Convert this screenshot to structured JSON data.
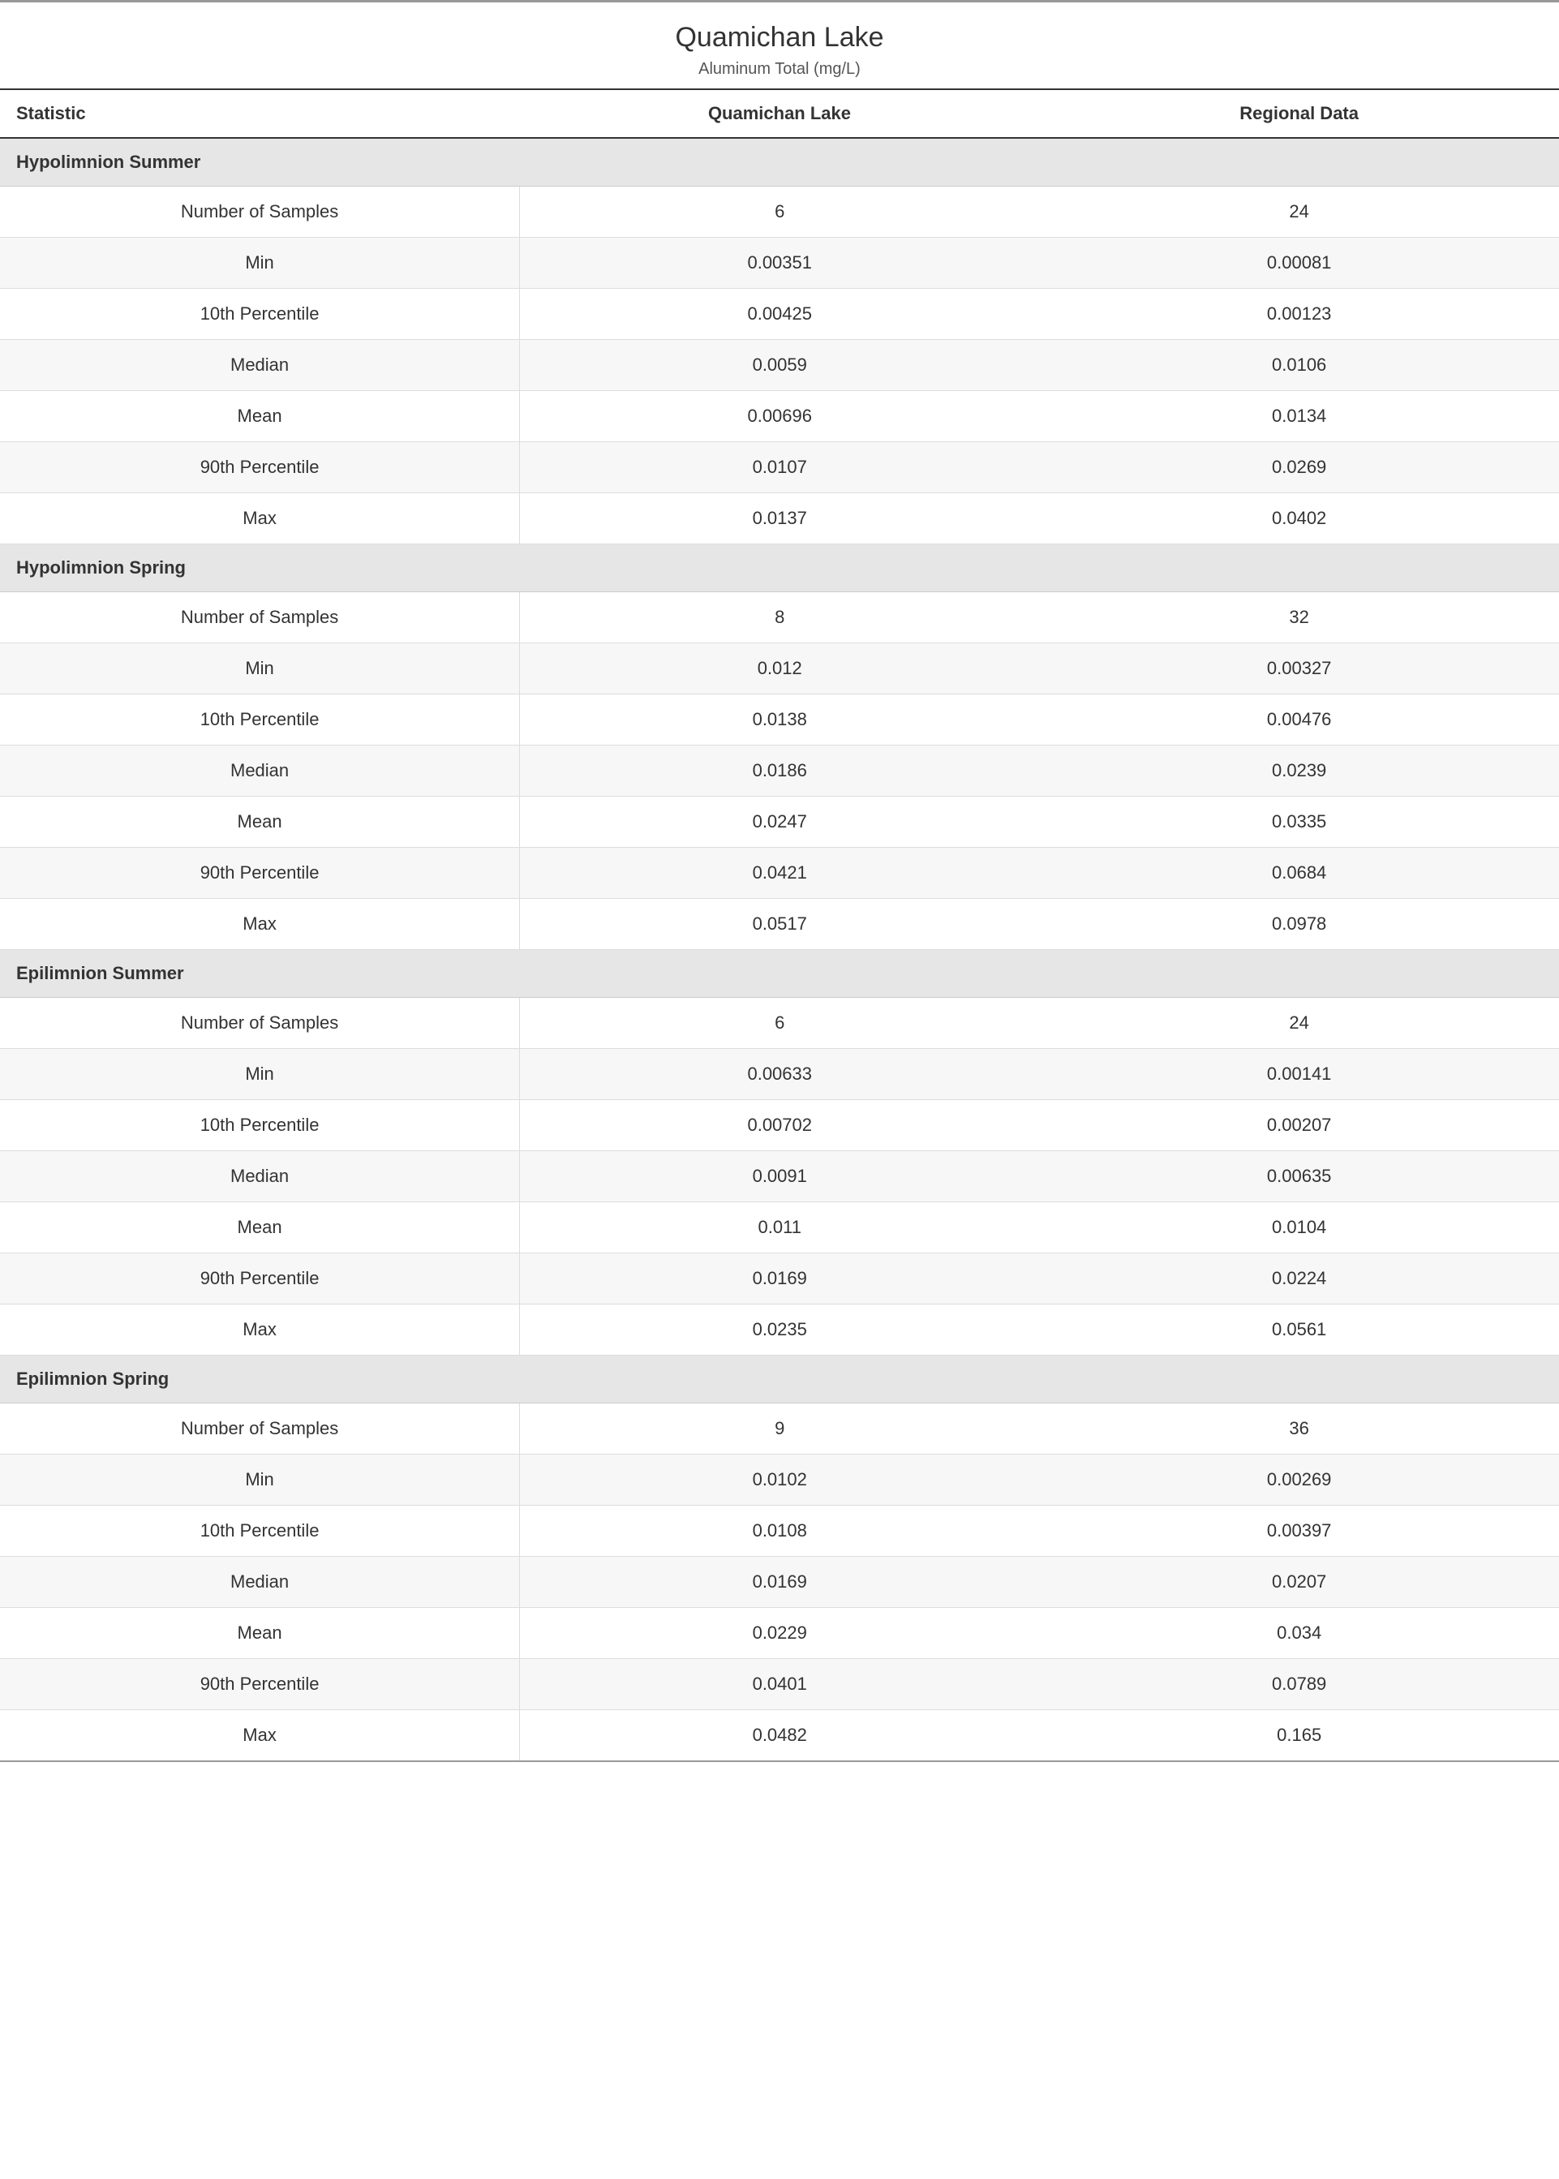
{
  "title": "Quamichan Lake",
  "subtitle": "Aluminum Total (mg/L)",
  "columns": [
    "Statistic",
    "Quamichan Lake",
    "Regional Data"
  ],
  "stat_labels": [
    "Number of Samples",
    "Min",
    "10th Percentile",
    "Median",
    "Mean",
    "90th Percentile",
    "Max"
  ],
  "sections": [
    {
      "name": "Hypolimnion Summer",
      "rows": [
        [
          "6",
          "24"
        ],
        [
          "0.00351",
          "0.00081"
        ],
        [
          "0.00425",
          "0.00123"
        ],
        [
          "0.0059",
          "0.0106"
        ],
        [
          "0.00696",
          "0.0134"
        ],
        [
          "0.0107",
          "0.0269"
        ],
        [
          "0.0137",
          "0.0402"
        ]
      ]
    },
    {
      "name": "Hypolimnion Spring",
      "rows": [
        [
          "8",
          "32"
        ],
        [
          "0.012",
          "0.00327"
        ],
        [
          "0.0138",
          "0.00476"
        ],
        [
          "0.0186",
          "0.0239"
        ],
        [
          "0.0247",
          "0.0335"
        ],
        [
          "0.0421",
          "0.0684"
        ],
        [
          "0.0517",
          "0.0978"
        ]
      ]
    },
    {
      "name": "Epilimnion Summer",
      "rows": [
        [
          "6",
          "24"
        ],
        [
          "0.00633",
          "0.00141"
        ],
        [
          "0.00702",
          "0.00207"
        ],
        [
          "0.0091",
          "0.00635"
        ],
        [
          "0.011",
          "0.0104"
        ],
        [
          "0.0169",
          "0.0224"
        ],
        [
          "0.0235",
          "0.0561"
        ]
      ]
    },
    {
      "name": "Epilimnion Spring",
      "rows": [
        [
          "9",
          "36"
        ],
        [
          "0.0102",
          "0.00269"
        ],
        [
          "0.0108",
          "0.00397"
        ],
        [
          "0.0169",
          "0.0207"
        ],
        [
          "0.0229",
          "0.034"
        ],
        [
          "0.0401",
          "0.0789"
        ],
        [
          "0.0482",
          "0.165"
        ]
      ]
    }
  ],
  "colors": {
    "top_border": "#999999",
    "header_border": "#333333",
    "row_border": "#dddddd",
    "section_bg": "#e6e6e6",
    "alt_row_bg": "#f7f7f7",
    "text": "#333333"
  },
  "typography": {
    "title_fontsize": 34,
    "subtitle_fontsize": 20,
    "header_fontsize": 22,
    "cell_fontsize": 22,
    "font_family": "Segoe UI"
  }
}
